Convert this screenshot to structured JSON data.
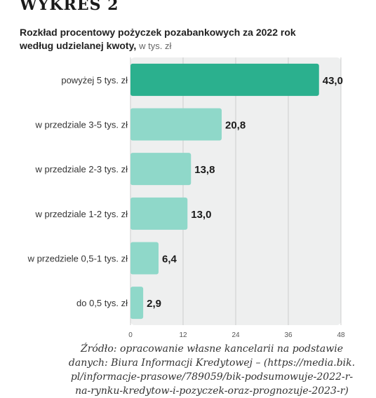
{
  "figure_label": "WYKRES 2",
  "title_line1": "Rozkład procentowy pożyczek pozabankowych za 2022 rok",
  "title_line2": "według udzielanej kwoty,",
  "title_unit": "w tys. zł",
  "source_lines": [
    "Źródło: opracowanie własne kancelarii na podstawie",
    "danych: Biura Informacji Kredytowej – (https://media.bik.",
    "pl/informacje-prasowe/789059/bik-podsumowuje-2022-r-",
    "na-rynku-kredytow-i-pozyczek-oraz-prognozuje-2023-r)"
  ],
  "colors": {
    "highlight": "#2bb08e",
    "bar": "#8fd8c9",
    "plot_bg": "#eeefef",
    "grid": "#cccccc"
  },
  "chart_data": {
    "type": "bar",
    "orientation": "horizontal",
    "categories": [
      "powyżej 5 tys. zł",
      "w przedziale 3-5 tys. zł",
      "w przedziale 2-3 tys. zł",
      "w przedziale 1-2 tys. zł",
      "w przedziele 0,5-1 tys. zł",
      "do 0,5 tys. zł"
    ],
    "values": [
      43.0,
      20.8,
      13.8,
      13.0,
      6.4,
      2.9
    ],
    "value_labels": [
      "43,0",
      "20,8",
      "13,8",
      "13,0",
      "6,4",
      "2,9"
    ],
    "highlight_index": 0,
    "xlim": [
      0,
      48
    ],
    "xticks": [
      0,
      12,
      24,
      36,
      48
    ],
    "grid": true
  }
}
